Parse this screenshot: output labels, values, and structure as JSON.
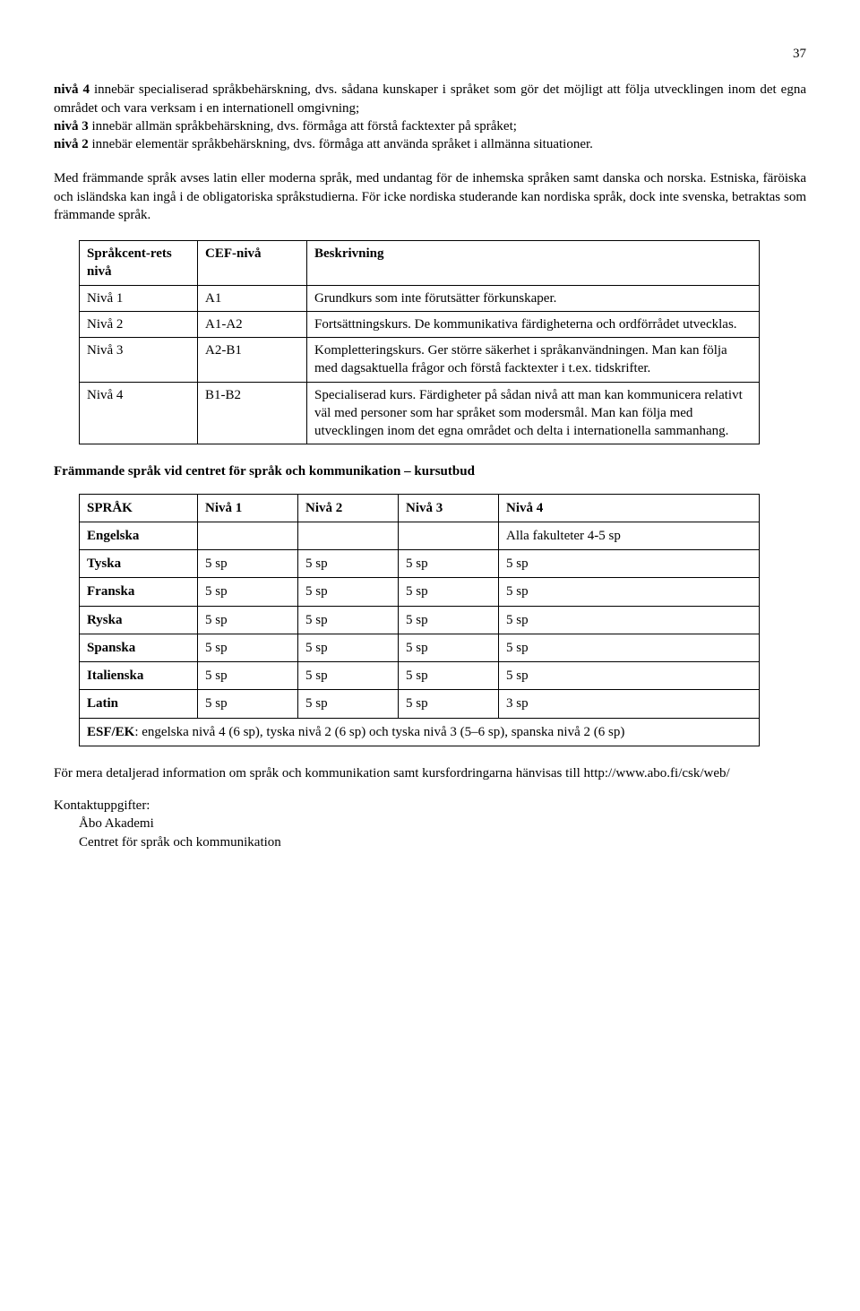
{
  "page_number": "37",
  "para1_part1": "nivå 4",
  "para1_part2": " innebär specialiserad språkbehärskning, dvs. sådana kunskaper i språket som gör det möjligt att följa utvecklingen inom det egna området och vara verksam i en internationell omgivning;",
  "para1_line2_b": "nivå 3",
  "para1_line2_rest": " innebär allmän språkbehärskning, dvs. förmåga att förstå facktexter på språket;",
  "para1_line3_b": "nivå 2",
  "para1_line3_rest": " innebär elementär språkbehärskning, dvs. förmåga att använda språket i allmänna situationer.",
  "para2": "Med främmande språk avses latin eller moderna språk, med undantag för de inhemska språken samt danska och norska. Estniska, färöiska och isländska kan ingå i de obligatoriska språkstudierna. För icke nordiska studerande kan nordiska språk, dock inte svenska, betraktas som främmande språk.",
  "table1": {
    "headers": [
      "Språkcent-rets nivå",
      "CEF-nivå",
      "Beskrivning"
    ],
    "rows": [
      [
        "Nivå 1",
        "A1",
        "Grundkurs som inte förutsätter förkunskaper."
      ],
      [
        "Nivå 2",
        "A1-A2",
        "Fortsättningskurs. De kommunikativa färdigheterna och ordförrådet utvecklas."
      ],
      [
        "Nivå 3",
        "A2-B1",
        "Kompletteringskurs. Ger större säkerhet i språkanvändningen. Man kan följa med dagsaktuella frågor och förstå facktexter i t.ex. tidskrifter."
      ],
      [
        "Nivå 4",
        "B1-B2",
        "Specialiserad kurs. Färdigheter på sådan nivå att man kan kommunicera relativt väl med personer som har språket som modersmål. Man kan följa med utvecklingen inom det egna området och delta i internationella sammanhang."
      ]
    ]
  },
  "section_heading": "Främmande språk vid centret för språk och kommunikation – kursutbud",
  "table2": {
    "headers": [
      "SPRÅK",
      "Nivå 1",
      "Nivå 2",
      "Nivå 3",
      "Nivå 4"
    ],
    "rows": [
      [
        "Engelska",
        "",
        "",
        "",
        "Alla fakulteter 4-5 sp"
      ],
      [
        "Tyska",
        "5 sp",
        "5 sp",
        "5 sp",
        "5 sp"
      ],
      [
        "Franska",
        "5 sp",
        "5 sp",
        "5 sp",
        "5 sp"
      ],
      [
        "Ryska",
        "5 sp",
        "5 sp",
        "5 sp",
        "5 sp"
      ],
      [
        "Spanska",
        "5 sp",
        "5 sp",
        "5 sp",
        "5 sp"
      ],
      [
        "Italienska",
        "5 sp",
        "5 sp",
        "5 sp",
        "5 sp"
      ],
      [
        "Latin",
        "5 sp",
        "5 sp",
        "5 sp",
        "3 sp"
      ]
    ],
    "footer_bold": "ESF/EK",
    "footer_rest": ": engelska nivå 4 (6 sp), tyska nivå 2 (6 sp) och tyska nivå 3 (5–6 sp), spanska nivå 2 (6 sp)"
  },
  "footer_note": "För mera detaljerad information om språk och kommunikation samt kursfordringarna hänvisas till http://www.abo.fi/csk/web/",
  "contact_label": "Kontaktuppgifter:",
  "contact_line1": "Åbo Akademi",
  "contact_line2": "Centret för språk och kommunikation"
}
